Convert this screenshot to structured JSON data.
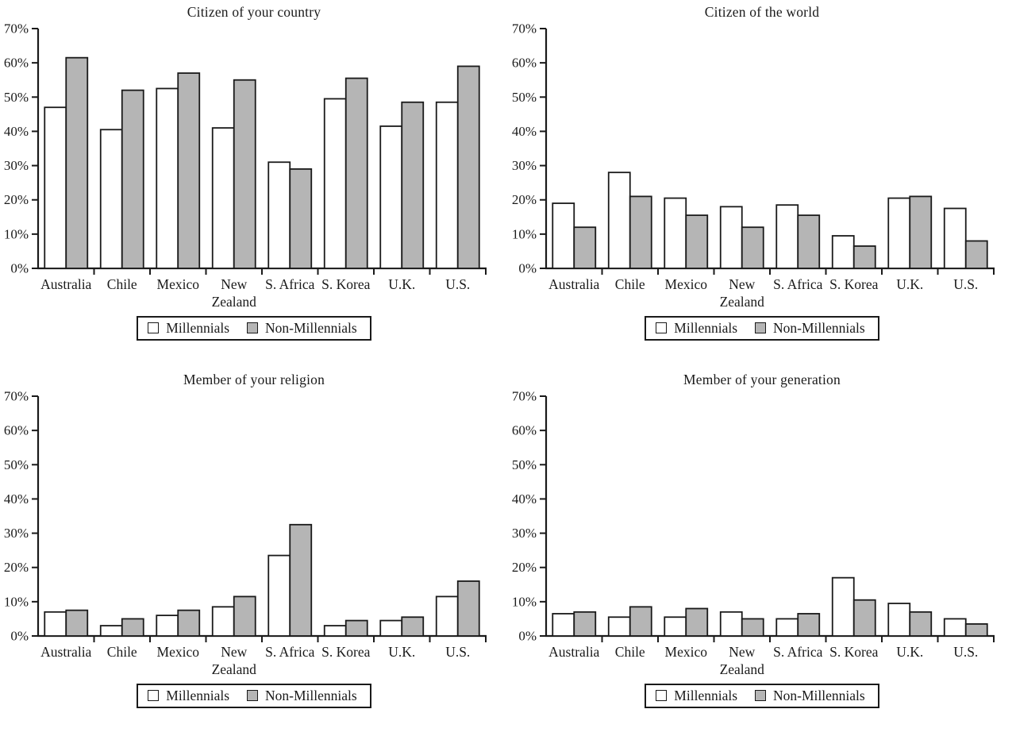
{
  "page": {
    "background": "#ffffff"
  },
  "styles": {
    "outline": "#1a1a1a",
    "bar_fill_millennials": "#ffffff",
    "bar_fill_non_millennials": "#b5b5b5",
    "text_color": "#1a1a1a"
  },
  "legend": {
    "items": [
      {
        "label": "Millennials",
        "color": "#ffffff"
      },
      {
        "label": "Non-Millennials",
        "color": "#b5b5b5"
      }
    ]
  },
  "chart_data": [
    {
      "type": "bar",
      "title": "Citizen of your country",
      "categories": [
        "Australia",
        "Chile",
        "Mexico",
        "New Zealand",
        "S. Africa",
        "S. Korea",
        "U.K.",
        "U.S."
      ],
      "series": [
        {
          "name": "Millennials",
          "values": [
            47,
            40.5,
            52.5,
            41,
            31,
            49.5,
            41.5,
            48.5
          ]
        },
        {
          "name": "Non-Millennials",
          "values": [
            61.5,
            52,
            57,
            55,
            29,
            55.5,
            48.5,
            59
          ]
        }
      ],
      "xlabel": "",
      "ylabel": "",
      "ylim": [
        0,
        70
      ],
      "ytick_step": 10,
      "ytick_labels": [
        "0%",
        "10%",
        "20%",
        "30%",
        "40%",
        "50%",
        "60%",
        "70%"
      ],
      "grid": false,
      "legend_position": "bottom"
    },
    {
      "type": "bar",
      "title": "Citizen of the world",
      "categories": [
        "Australia",
        "Chile",
        "Mexico",
        "New Zealand",
        "S. Africa",
        "S. Korea",
        "U.K.",
        "U.S."
      ],
      "series": [
        {
          "name": "Millennials",
          "values": [
            19,
            28,
            20.5,
            18,
            18.5,
            9.5,
            20.5,
            17.5
          ]
        },
        {
          "name": "Non-Millennials",
          "values": [
            12,
            21,
            15.5,
            12,
            15.5,
            6.5,
            21,
            8
          ]
        }
      ],
      "xlabel": "",
      "ylabel": "",
      "ylim": [
        0,
        70
      ],
      "ytick_step": 10,
      "ytick_labels": [
        "0%",
        "10%",
        "20%",
        "30%",
        "40%",
        "50%",
        "60%",
        "70%"
      ],
      "grid": false,
      "legend_position": "bottom"
    },
    {
      "type": "bar",
      "title": "Member of your religion",
      "categories": [
        "Australia",
        "Chile",
        "Mexico",
        "New Zealand",
        "S. Africa",
        "S. Korea",
        "U.K.",
        "U.S."
      ],
      "series": [
        {
          "name": "Millennials",
          "values": [
            7,
            3,
            6,
            8.5,
            23.5,
            3,
            4.5,
            11.5
          ]
        },
        {
          "name": "Non-Millennials",
          "values": [
            7.5,
            5,
            7.5,
            11.5,
            32.5,
            4.5,
            5.5,
            16
          ]
        }
      ],
      "xlabel": "",
      "ylabel": "",
      "ylim": [
        0,
        70
      ],
      "ytick_step": 10,
      "ytick_labels": [
        "0%",
        "10%",
        "20%",
        "30%",
        "40%",
        "50%",
        "60%",
        "70%"
      ],
      "grid": false,
      "legend_position": "bottom"
    },
    {
      "type": "bar",
      "title": "Member of your generation",
      "categories": [
        "Australia",
        "Chile",
        "Mexico",
        "New Zealand",
        "S. Africa",
        "S. Korea",
        "U.K.",
        "U.S."
      ],
      "series": [
        {
          "name": "Millennials",
          "values": [
            6.5,
            5.5,
            5.5,
            7,
            5,
            17,
            9.5,
            5
          ]
        },
        {
          "name": "Non-Millennials",
          "values": [
            7,
            8.5,
            8,
            5,
            6.5,
            10.5,
            7,
            3.5
          ]
        }
      ],
      "xlabel": "",
      "ylabel": "",
      "ylim": [
        0,
        70
      ],
      "ytick_step": 10,
      "ytick_labels": [
        "0%",
        "10%",
        "20%",
        "30%",
        "40%",
        "50%",
        "60%",
        "70%"
      ],
      "grid": false,
      "legend_position": "bottom"
    }
  ]
}
